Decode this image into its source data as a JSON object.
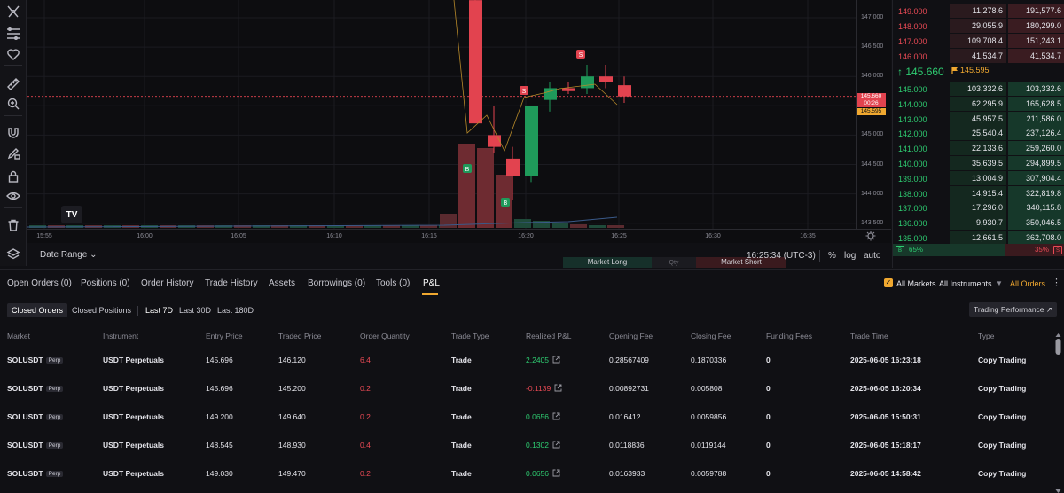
{
  "colors": {
    "up": "#2ecc71",
    "down": "#ea4a55",
    "accent": "#f0a830",
    "up_candle": "#1f9a5a",
    "down_candle": "#e2434f"
  },
  "toolbar": {
    "icons": [
      "crosshair-icon",
      "fib-icon",
      "heart-icon",
      "ruler-icon",
      "zoom-in-icon",
      "magnet-icon",
      "pencil-lock-icon",
      "lock-icon",
      "eye-icon",
      "trash-icon",
      "layers-icon"
    ]
  },
  "chart": {
    "price_levels": [
      "147.000",
      "146.500",
      "146.000",
      "145.500",
      "145.000",
      "144.500",
      "144.000",
      "143.500"
    ],
    "price_badge_last": "145.660",
    "price_badge_timer": "00:26",
    "price_badge_mark": "145.595",
    "time_labels": [
      "15:55",
      "16:00",
      "16:05",
      "16:10",
      "16:15",
      "16:20",
      "16:25",
      "16:30",
      "16:35"
    ],
    "logo": "TV",
    "markers": [
      "B",
      "B",
      "S",
      "S"
    ]
  },
  "chart_footer": {
    "date_range": "Date Range ⌄",
    "market_long": "Market Long",
    "qty": "Qty",
    "market_short": "Market Short",
    "clock": "16:25:34 (UTC-3)",
    "percent": "%",
    "log": "log",
    "auto": "auto"
  },
  "orderbook": {
    "asks": [
      {
        "price": "149.000",
        "size": "11,278.6",
        "sum": "191,577.6"
      },
      {
        "price": "148.000",
        "size": "29,055.9",
        "sum": "180,299.0"
      },
      {
        "price": "147.000",
        "size": "109,708.4",
        "sum": "151,243.1"
      },
      {
        "price": "146.000",
        "size": "41,534.7",
        "sum": "41,534.7"
      }
    ],
    "last_price": "↑ 145.660",
    "mark_price": "145.595",
    "bids": [
      {
        "price": "145.000",
        "size": "103,332.6",
        "sum": "103,332.6"
      },
      {
        "price": "144.000",
        "size": "62,295.9",
        "sum": "165,628.5"
      },
      {
        "price": "143.000",
        "size": "45,957.5",
        "sum": "211,586.0"
      },
      {
        "price": "142.000",
        "size": "25,540.4",
        "sum": "237,126.4"
      },
      {
        "price": "141.000",
        "size": "22,133.6",
        "sum": "259,260.0"
      },
      {
        "price": "140.000",
        "size": "35,639.5",
        "sum": "294,899.5"
      },
      {
        "price": "139.000",
        "size": "13,004.9",
        "sum": "307,904.4"
      },
      {
        "price": "138.000",
        "size": "14,915.4",
        "sum": "322,819.8"
      },
      {
        "price": "137.000",
        "size": "17,296.0",
        "sum": "340,115.8"
      },
      {
        "price": "136.000",
        "size": "9,930.7",
        "sum": "350,046.5"
      },
      {
        "price": "135.000",
        "size": "12,661.5",
        "sum": "362,708.0"
      }
    ],
    "buy_tag": "B",
    "buy_pct": "65%",
    "sell_pct": "35%",
    "sell_tag": "S",
    "buy_ratio": 0.65
  },
  "tabs": [
    "Open Orders (0)",
    "Positions (0)",
    "Order History",
    "Trade History",
    "Assets",
    "Borrowings (0)",
    "Tools (0)",
    "P&L"
  ],
  "filters": {
    "all_markets": "All Markets",
    "all_instruments": "All Instruments",
    "all_orders": "All Orders",
    "check": "✓",
    "caret": "▼",
    "more": "⋮"
  },
  "subtabs": [
    "Closed Orders",
    "Closed Positions"
  ],
  "periods": [
    "Last 7D",
    "Last 30D",
    "Last 180D"
  ],
  "trading_performance": "Trading Performance ↗",
  "table": {
    "headers": [
      "Market",
      "Instrument",
      "Entry Price",
      "Traded Price",
      "Order Quantity",
      "Trade Type",
      "Realized P&L",
      "Opening Fee",
      "Closing Fee",
      "Funding Fees",
      "Trade Time",
      "Type"
    ],
    "perp_badge": "Perp",
    "rows": [
      {
        "market": "SOLUSDT",
        "instrument": "USDT Perpetuals",
        "entry": "145.696",
        "traded": "146.120",
        "qty": "6.4",
        "trade_type": "Trade",
        "pnl": "2.2405",
        "pnl_sign": "pos",
        "open_fee": "0.28567409",
        "close_fee": "0.1870336",
        "funding": "0",
        "time": "2025-06-05 16:23:18",
        "type": "Copy Trading"
      },
      {
        "market": "SOLUSDT",
        "instrument": "USDT Perpetuals",
        "entry": "145.696",
        "traded": "145.200",
        "qty": "0.2",
        "trade_type": "Trade",
        "pnl": "-0.1139",
        "pnl_sign": "neg",
        "open_fee": "0.00892731",
        "close_fee": "0.005808",
        "funding": "0",
        "time": "2025-06-05 16:20:34",
        "type": "Copy Trading"
      },
      {
        "market": "SOLUSDT",
        "instrument": "USDT Perpetuals",
        "entry": "149.200",
        "traded": "149.640",
        "qty": "0.2",
        "trade_type": "Trade",
        "pnl": "0.0656",
        "pnl_sign": "pos",
        "open_fee": "0.016412",
        "close_fee": "0.0059856",
        "funding": "0",
        "time": "2025-06-05 15:50:31",
        "type": "Copy Trading"
      },
      {
        "market": "SOLUSDT",
        "instrument": "USDT Perpetuals",
        "entry": "148.545",
        "traded": "148.930",
        "qty": "0.4",
        "trade_type": "Trade",
        "pnl": "0.1302",
        "pnl_sign": "pos",
        "open_fee": "0.0118836",
        "close_fee": "0.0119144",
        "funding": "0",
        "time": "2025-06-05 15:18:17",
        "type": "Copy Trading"
      },
      {
        "market": "SOLUSDT",
        "instrument": "USDT Perpetuals",
        "entry": "149.030",
        "traded": "149.470",
        "qty": "0.2",
        "trade_type": "Trade",
        "pnl": "0.0656",
        "pnl_sign": "pos",
        "open_fee": "0.0163933",
        "close_fee": "0.0059788",
        "funding": "0",
        "time": "2025-06-05 14:58:42",
        "type": "Copy Trading"
      }
    ]
  }
}
